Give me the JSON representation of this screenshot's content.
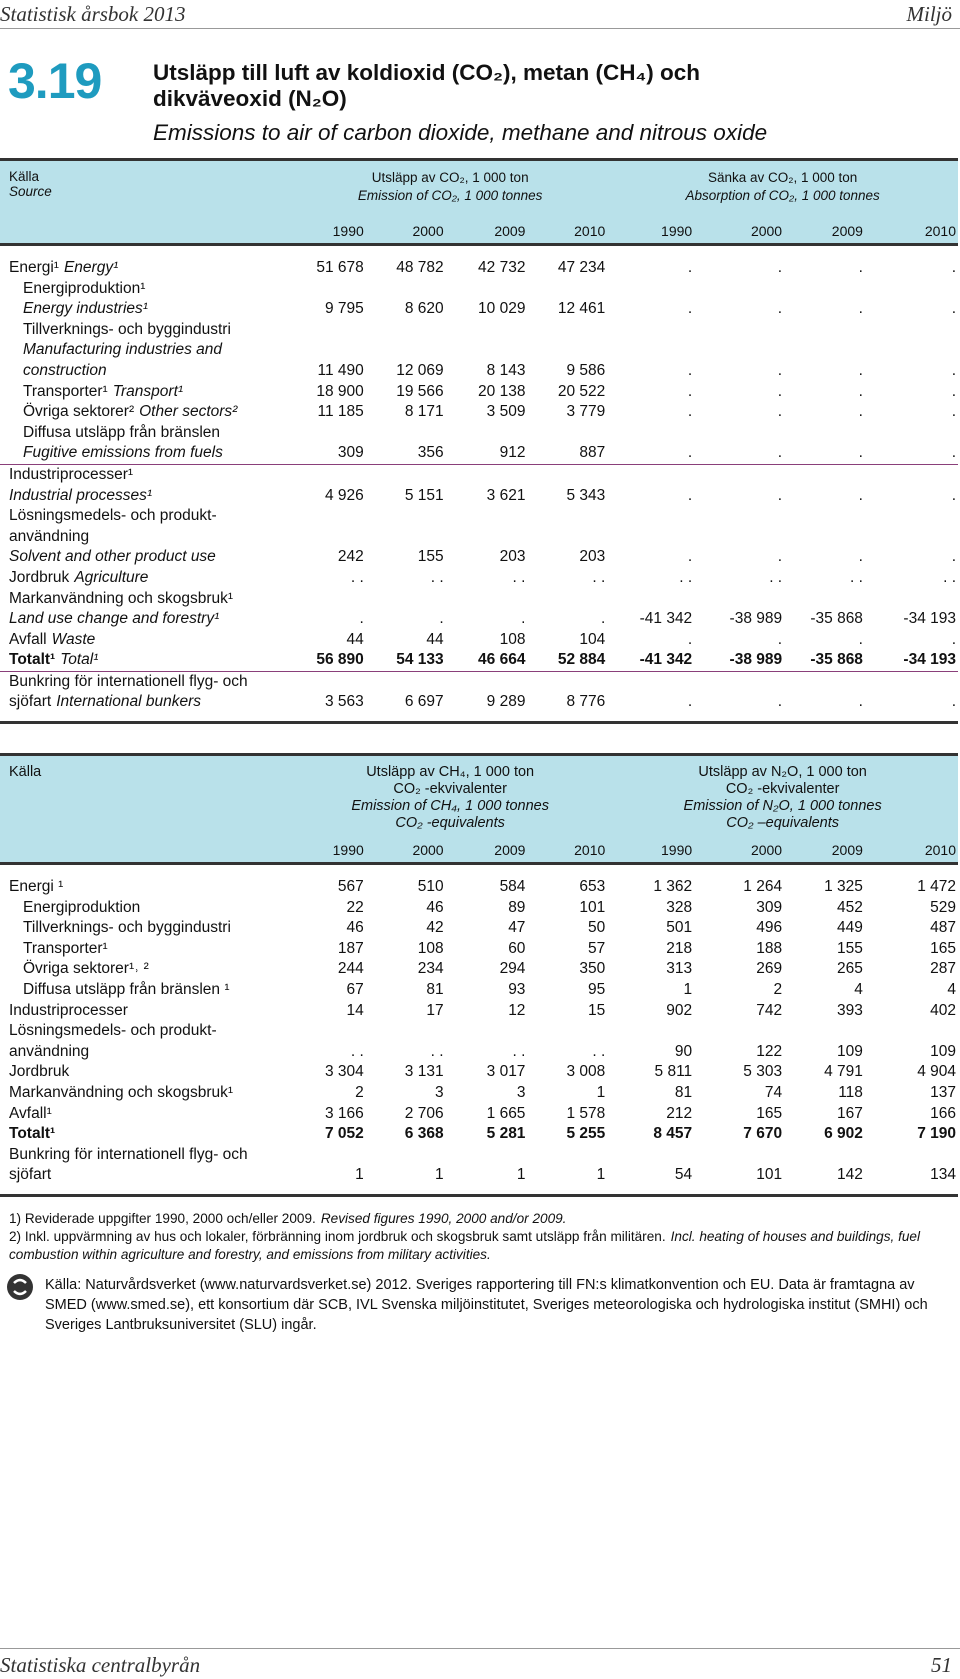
{
  "header": {
    "publication": "Statistisk årsbok 2013",
    "section": "Miljö",
    "number": "3.19",
    "title": "Utsläpp till luft av koldioxid (CO₂), metan (CH₄) och dikväveoxid (N₂O)",
    "subtitle": "Emissions to air of carbon dioxide, methane and nitrous oxide"
  },
  "tables": [
    {
      "source": [
        {
          "text": "Källa"
        },
        {
          "text": "Source",
          "italic": true
        }
      ],
      "groups": [
        [
          {
            "text": "Utsläpp av CO₂, 1 000 ton"
          },
          {
            "text": "Emission of CO₂, 1 000 tonnes",
            "italic": true
          }
        ],
        [
          {
            "text": "Sänka av CO₂, 1 000 ton"
          },
          {
            "text": "Absorption of CO₂, 1 000 tonnes",
            "italic": true
          }
        ]
      ],
      "years": [
        "1990",
        "2000",
        "2009",
        "2010",
        "1990",
        "2000",
        "2009",
        "2010"
      ],
      "rows": [
        {
          "lines": [
            {
              "sv": "Energi¹",
              "en": "Energy¹"
            }
          ],
          "values": [
            "51 678",
            "48 782",
            "42 732",
            "47 234",
            ".",
            ".",
            ".",
            "."
          ]
        },
        {
          "indent": true,
          "lines": [
            {
              "sv": "Energiproduktion¹"
            },
            {
              "en": "Energy industries¹"
            }
          ],
          "values": [
            "9 795",
            "8 620",
            "10 029",
            "12 461",
            ".",
            ".",
            ".",
            "."
          ]
        },
        {
          "indent": true,
          "lines": [
            {
              "sv": "Tillverknings- och byggindustri"
            },
            {
              "en": "Manufacturing industries and"
            },
            {
              "en": "construction"
            }
          ],
          "values": [
            "11 490",
            "12 069",
            "8 143",
            "9 586",
            ".",
            ".",
            ".",
            "."
          ]
        },
        {
          "indent": true,
          "lines": [
            {
              "sv": "Transporter¹",
              "en": "Transport¹"
            }
          ],
          "values": [
            "18 900",
            "19 566",
            "20 138",
            "20 522",
            ".",
            ".",
            ".",
            "."
          ]
        },
        {
          "indent": true,
          "lines": [
            {
              "sv": "Övriga sektorer²",
              "en": "Other sectors²"
            }
          ],
          "values": [
            "11 185",
            "8 171",
            "3 509",
            "3 779",
            ".",
            ".",
            ".",
            "."
          ]
        },
        {
          "indent": true,
          "separator": true,
          "lines": [
            {
              "sv": "Diffusa utsläpp från bränslen"
            },
            {
              "en": "Fugitive emissions from fuels"
            }
          ],
          "values": [
            "309",
            "356",
            "912",
            "887",
            ".",
            ".",
            ".",
            "."
          ]
        },
        {
          "lines": [
            {
              "sv": "Industriprocesser¹"
            },
            {
              "en": "Industrial processes¹"
            }
          ],
          "values": [
            "4 926",
            "5 151",
            "3 621",
            "5 343",
            ".",
            ".",
            ".",
            "."
          ]
        },
        {
          "lines": [
            {
              "sv": "Lösningsmedels- och produkt-"
            },
            {
              "sv": "användning"
            },
            {
              "en": "Solvent and other product use"
            }
          ],
          "values": [
            "242",
            "155",
            "203",
            "203",
            ".",
            ".",
            ".",
            "."
          ]
        },
        {
          "lines": [
            {
              "sv": "Jordbruk",
              "en": "Agriculture"
            }
          ],
          "values": [
            ". .",
            ". .",
            ". .",
            ". .",
            ". .",
            ". .",
            ". .",
            ". ."
          ]
        },
        {
          "lines": [
            {
              "sv": "Markanvändning och skogsbruk¹"
            },
            {
              "en": "Land use change and forestry¹"
            }
          ],
          "values": [
            ".",
            ".",
            ".",
            ".",
            "-41 342",
            "-38 989",
            "-35 868",
            "-34 193"
          ]
        },
        {
          "lines": [
            {
              "sv": "Avfall",
              "en": "Waste"
            }
          ],
          "values": [
            "44",
            "44",
            "108",
            "104",
            ".",
            ".",
            ".",
            "."
          ]
        },
        {
          "bold": true,
          "separator": true,
          "lines": [
            {
              "sv": "Totalt¹",
              "en": "Total¹"
            }
          ],
          "values": [
            "56 890",
            "54 133",
            "46 664",
            "52 884",
            "-41 342",
            "-38 989",
            "-35 868",
            "-34 193"
          ]
        },
        {
          "lines": [
            {
              "sv": "Bunkring för internationell flyg- och"
            },
            {
              "sv": "sjöfart",
              "en": "International bunkers"
            }
          ],
          "values": [
            "3 563",
            "6 697",
            "9 289",
            "8 776",
            ".",
            ".",
            ".",
            "."
          ]
        }
      ]
    },
    {
      "source": [
        {
          "text": "Källa"
        }
      ],
      "groups": [
        [
          {
            "text": "Utsläpp av CH₄, 1 000 ton"
          },
          {
            "text": "CO₂ -ekvivalenter"
          },
          {
            "text": "Emission of CH₄, 1 000 tonnes",
            "italic": true
          },
          {
            "text": "CO₂ -equivalents",
            "italic": true
          }
        ],
        [
          {
            "text": "Utsläpp av N₂O, 1 000 ton"
          },
          {
            "text": "CO₂ -ekvivalenter"
          },
          {
            "text": "Emission of N₂O, 1 000 tonnes",
            "italic": true
          },
          {
            "text": "CO₂ –equivalents",
            "italic": true
          }
        ]
      ],
      "years": [
        "1990",
        "2000",
        "2009",
        "2010",
        "1990",
        "2000",
        "2009",
        "2010"
      ],
      "rows": [
        {
          "lines": [
            {
              "sv": "Energi ¹"
            }
          ],
          "values": [
            "567",
            "510",
            "584",
            "653",
            "1 362",
            "1 264",
            "1 325",
            "1 472"
          ]
        },
        {
          "indent": true,
          "lines": [
            {
              "sv": "Energiproduktion"
            }
          ],
          "values": [
            "22",
            "46",
            "89",
            "101",
            "328",
            "309",
            "452",
            "529"
          ]
        },
        {
          "indent": true,
          "lines": [
            {
              "sv": "Tillverknings- och byggindustri"
            }
          ],
          "values": [
            "46",
            "42",
            "47",
            "50",
            "501",
            "496",
            "449",
            "487"
          ]
        },
        {
          "indent": true,
          "lines": [
            {
              "sv": "Transporter¹"
            }
          ],
          "values": [
            "187",
            "108",
            "60",
            "57",
            "218",
            "188",
            "155",
            "165"
          ]
        },
        {
          "indent": true,
          "lines": [
            {
              "sv": "Övriga sektorer¹˒ ²"
            }
          ],
          "values": [
            "244",
            "234",
            "294",
            "350",
            "313",
            "269",
            "265",
            "287"
          ]
        },
        {
          "indent": true,
          "lines": [
            {
              "sv": "Diffusa utsläpp från bränslen ¹"
            }
          ],
          "values": [
            "67",
            "81",
            "93",
            "95",
            "1",
            "2",
            "4",
            "4"
          ]
        },
        {
          "lines": [
            {
              "sv": "Industriprocesser"
            }
          ],
          "values": [
            "14",
            "17",
            "12",
            "15",
            "902",
            "742",
            "393",
            "402"
          ]
        },
        {
          "lines": [
            {
              "sv": "Lösningsmedels- och produkt-"
            },
            {
              "sv": "användning"
            }
          ],
          "values": [
            ". .",
            ". .",
            ". .",
            ". .",
            "90",
            "122",
            "109",
            "109"
          ]
        },
        {
          "lines": [
            {
              "sv": "Jordbruk"
            }
          ],
          "values": [
            "3 304",
            "3 131",
            "3 017",
            "3 008",
            "5 811",
            "5 303",
            "4 791",
            "4 904"
          ]
        },
        {
          "lines": [
            {
              "sv": "Markanvändning och skogsbruk¹"
            }
          ],
          "values": [
            "2",
            "3",
            "3",
            "1",
            "81",
            "74",
            "118",
            "137"
          ]
        },
        {
          "lines": [
            {
              "sv": "Avfall¹"
            }
          ],
          "values": [
            "3 166",
            "2 706",
            "1 665",
            "1 578",
            "212",
            "165",
            "167",
            "166"
          ]
        },
        {
          "bold": true,
          "lines": [
            {
              "sv": "Totalt¹"
            }
          ],
          "values": [
            "7 052",
            "6 368",
            "5 281",
            "5 255",
            "8 457",
            "7 670",
            "6 902",
            "7 190"
          ]
        },
        {
          "lines": [
            {
              "sv": "Bunkring för internationell flyg- och"
            },
            {
              "sv": "sjöfart"
            }
          ],
          "values": [
            "1",
            "1",
            "1",
            "1",
            "54",
            "101",
            "142",
            "134"
          ]
        }
      ]
    }
  ],
  "footnotes": [
    {
      "sv": "1) Reviderade uppgifter 1990, 2000 och/eller 2009.",
      "en": "Revised figures 1990, 2000 and/or 2009."
    },
    {
      "sv": "2) Inkl. uppvärmning av hus och lokaler, förbränning inom jordbruk och skogsbruk samt utsläpp från militären.",
      "en": "Incl. heating of houses and buildings, fuel combustion within agriculture and forestry, and emissions from military activities."
    }
  ],
  "source": "Källa: Naturvårdsverket (www.naturvardsverket.se) 2012. Sveriges rapportering till FN:s klimatkonvention och EU. Data är framtagna av SMED (www.smed.se), ett konsortium där SCB, IVL Svenska miljöinstitutet, Sveriges meteorologiska och hydrologiska institut (SMHI) och Sveriges Lantbruksuniversitet (SLU) ingår.",
  "footer": {
    "publisher": "Statistiska centralbyrån",
    "page": "51"
  }
}
